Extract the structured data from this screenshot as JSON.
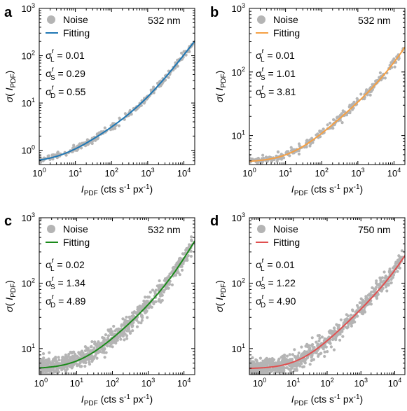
{
  "chart_data": [
    {
      "panel": "a",
      "type": "scatter",
      "wavelength": "532 nm",
      "legend": [
        "Noise",
        "Fitting"
      ],
      "fit_color": "#1f77b4",
      "noise_color": "#b4b4b4",
      "params": {
        "L": "0.01",
        "S": "0.29",
        "D": "0.55"
      },
      "xlabel": "I_PDF (cts s-1 px-1)",
      "ylabel": "σ( I_PDF)",
      "xscale": "log",
      "yscale": "log",
      "xlim": [
        1,
        20000
      ],
      "ylim": [
        0.5,
        1000
      ],
      "xticks": [
        1,
        10,
        100,
        1000,
        10000
      ],
      "yticks": [
        1,
        10,
        100,
        1000
      ],
      "fit": {
        "sL": 0.01,
        "sS": 0.29,
        "sD": 0.55
      }
    },
    {
      "panel": "b",
      "type": "scatter",
      "wavelength": "532 nm",
      "legend": [
        "Noise",
        "Fitting"
      ],
      "fit_color": "#f5a044",
      "noise_color": "#b4b4b4",
      "params": {
        "L": "0.01",
        "S": "1.01",
        "D": "3.81"
      },
      "xlabel": "I_PDF (cts s-1 px-1)",
      "ylabel": "σ( I_PDF)",
      "xscale": "log",
      "yscale": "log",
      "xlim": [
        1,
        20000
      ],
      "ylim": [
        3.5,
        1000
      ],
      "xticks": [
        1,
        10,
        100,
        1000,
        10000
      ],
      "yticks": [
        10,
        100,
        1000
      ],
      "fit": {
        "sL": 0.01,
        "sS": 1.01,
        "sD": 3.81
      }
    },
    {
      "panel": "c",
      "type": "scatter",
      "wavelength": "532 nm",
      "legend": [
        "Noise",
        "Fitting"
      ],
      "fit_color": "#1a8a1a",
      "noise_color": "#b4b4b4",
      "params": {
        "L": "0.02",
        "S": "1.34",
        "D": "4.89"
      },
      "xlabel": "I_PDF (cts s-1 px-1)",
      "ylabel": "σ( I_PDF)",
      "xscale": "log",
      "yscale": "log",
      "xlim": [
        0.9,
        20000
      ],
      "ylim": [
        4,
        1000
      ],
      "xticks": [
        1,
        10,
        100,
        1000,
        10000
      ],
      "yticks": [
        10,
        100,
        1000
      ],
      "fit": {
        "sL": 0.02,
        "sS": 1.34,
        "sD": 4.89
      }
    },
    {
      "panel": "d",
      "type": "scatter",
      "wavelength": "750 nm",
      "legend": [
        "Noise",
        "Fitting"
      ],
      "fit_color": "#e05050",
      "noise_color": "#b4b4b4",
      "params": {
        "L": "0.01",
        "S": "1.22",
        "D": "4.90"
      },
      "xlabel": "I_PDF (cts s-1 px-1)",
      "ylabel": "σ( I_PDF)",
      "xscale": "log",
      "yscale": "log",
      "xlim": [
        0.5,
        20000
      ],
      "ylim": [
        4,
        1000
      ],
      "xticks": [
        1,
        10,
        100,
        1000,
        10000
      ],
      "yticks": [
        10,
        100,
        1000
      ],
      "fit": {
        "sL": 0.01,
        "sS": 1.22,
        "sD": 4.9
      }
    }
  ]
}
